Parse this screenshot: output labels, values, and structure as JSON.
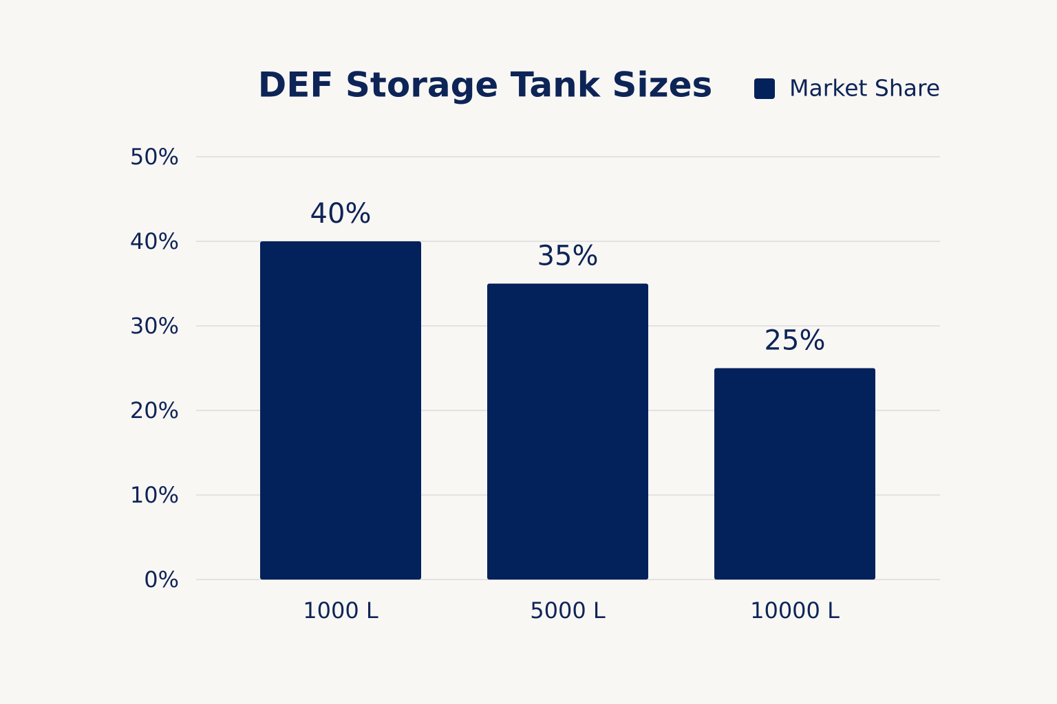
{
  "chart_data": {
    "type": "bar",
    "title": "DEF Storage Tank Sizes",
    "categories": [
      "1000 L",
      "5000 L",
      "10000 L"
    ],
    "series": [
      {
        "name": "Market Share",
        "color": "#03215a",
        "values": [
          40,
          35,
          25
        ],
        "value_labels": [
          "40%",
          "35%",
          "25%"
        ]
      }
    ],
    "ylim": [
      0,
      50
    ],
    "yticks": [
      {
        "value": 0,
        "label": "0%"
      },
      {
        "value": 10,
        "label": "10%"
      },
      {
        "value": 20,
        "label": "20%"
      },
      {
        "value": 30,
        "label": "30%"
      },
      {
        "value": 40,
        "label": "40%"
      },
      {
        "value": 50,
        "label": "50%"
      }
    ],
    "grid": true,
    "legend": "top-right"
  }
}
